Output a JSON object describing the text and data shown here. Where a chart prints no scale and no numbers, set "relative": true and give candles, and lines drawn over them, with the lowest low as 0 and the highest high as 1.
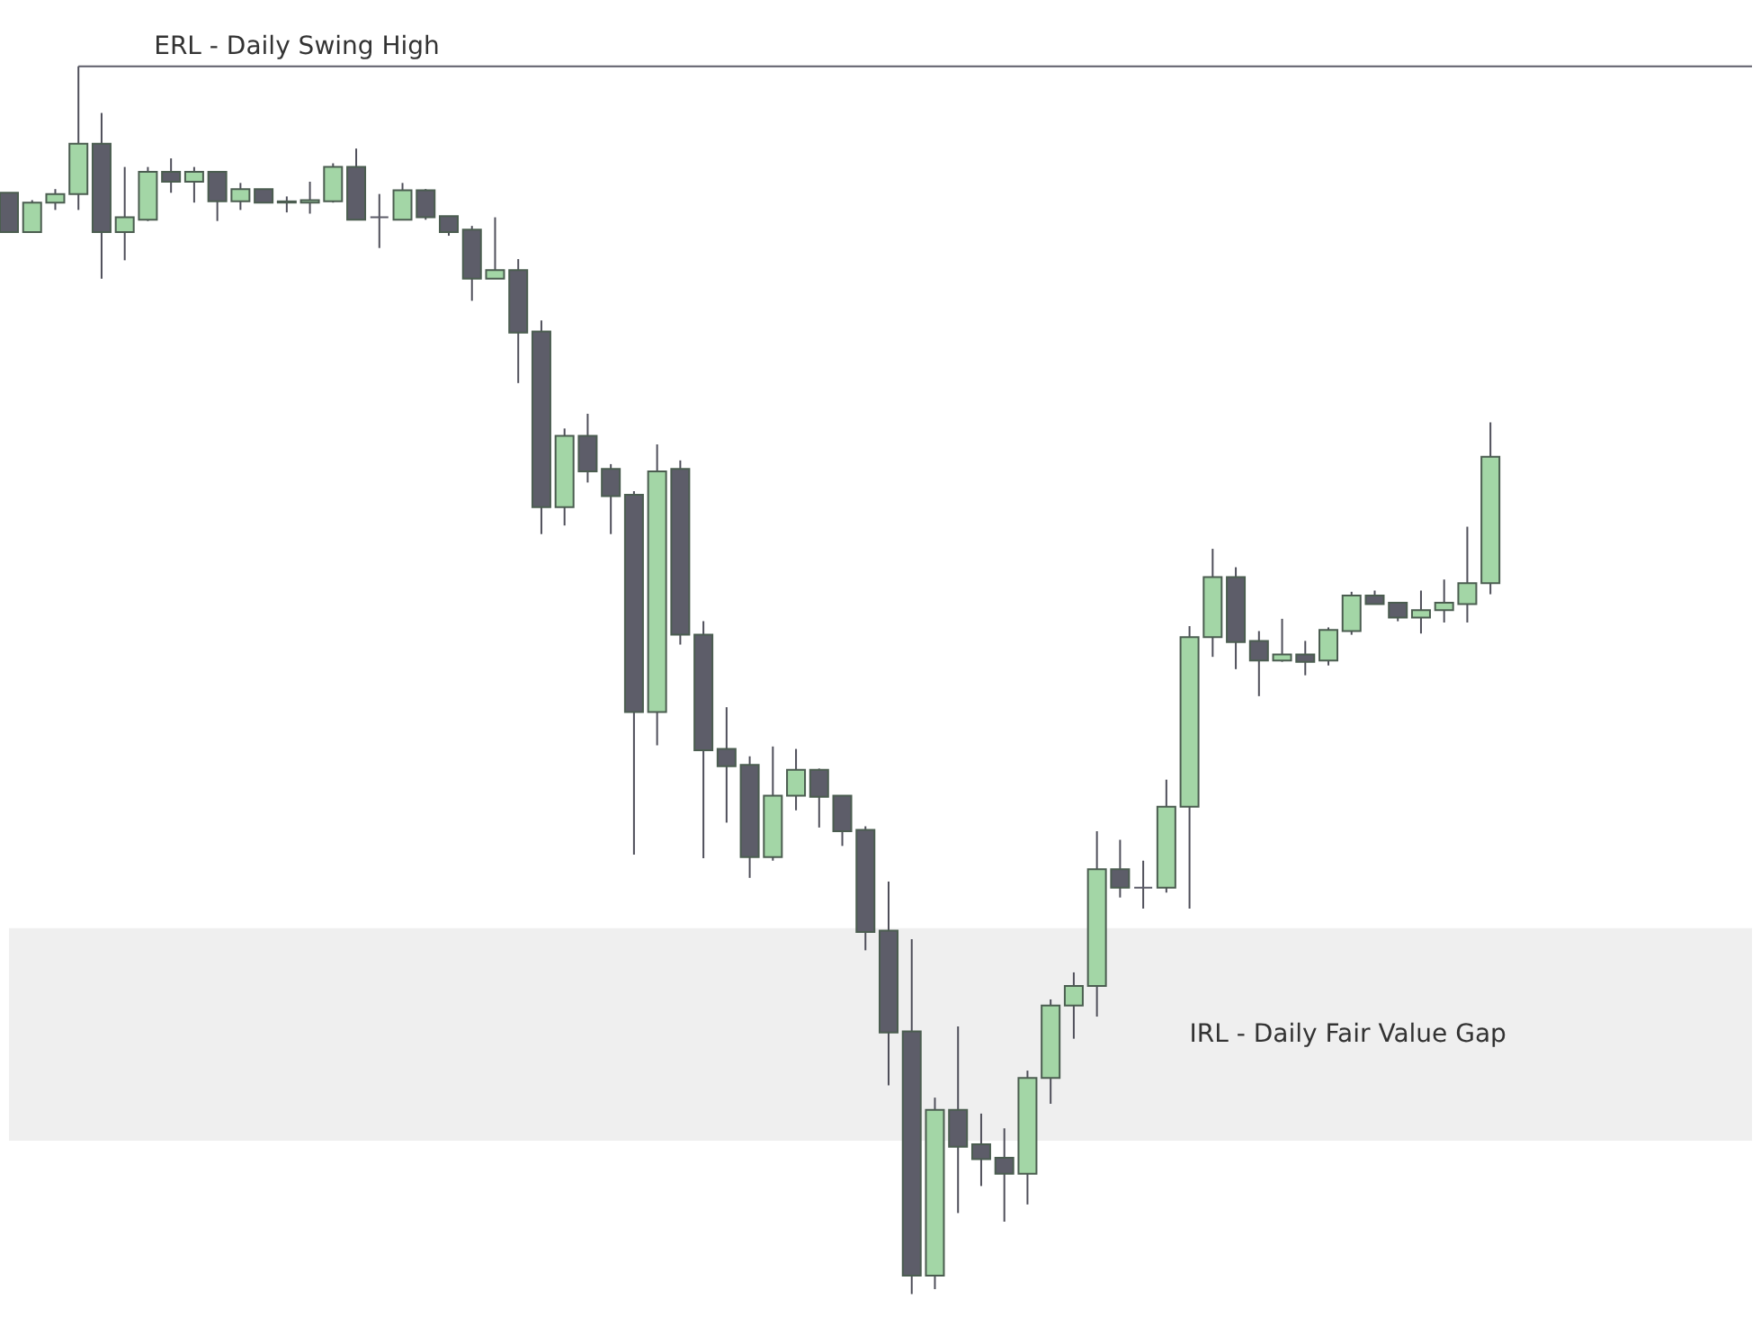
{
  "chart_data": {
    "type": "candlestick",
    "relative": true,
    "categories": [
      null,
      null,
      null,
      null,
      null,
      null,
      null,
      null,
      null,
      null,
      null,
      null,
      null,
      null,
      null,
      null,
      null,
      null,
      null,
      null,
      null,
      null,
      null,
      null,
      null,
      null,
      null,
      null,
      null,
      null,
      null,
      null,
      null,
      null,
      null,
      null,
      null,
      null,
      null,
      null,
      null,
      null,
      null,
      null,
      null,
      null,
      null,
      null,
      null,
      null,
      null,
      null,
      null,
      null,
      null,
      null,
      null,
      null,
      null,
      null,
      null,
      null,
      null,
      null,
      null
    ],
    "ohlc": [
      [
        0.897,
        0.897,
        0.865,
        0.865
      ],
      [
        0.865,
        0.891,
        0.865,
        0.889
      ],
      [
        0.889,
        0.9,
        0.883,
        0.896
      ],
      [
        0.896,
        1,
        0.883,
        0.937
      ],
      [
        0.937,
        0.962,
        0.827,
        0.865
      ],
      [
        0.865,
        0.918,
        0.842,
        0.877
      ],
      [
        0.875,
        0.918,
        0.874,
        0.914
      ],
      [
        0.914,
        0.925,
        0.897,
        0.906
      ],
      [
        0.906,
        0.918,
        0.889,
        0.914
      ],
      [
        0.914,
        0.914,
        0.874,
        0.89
      ],
      [
        0.89,
        0.905,
        0.883,
        0.9
      ],
      [
        0.9,
        0.9,
        0.889,
        0.889
      ],
      [
        0.89,
        0.894,
        0.881,
        0.889
      ],
      [
        0.889,
        0.906,
        0.88,
        0.891
      ],
      [
        0.89,
        0.921,
        0.889,
        0.918
      ],
      [
        0.918,
        0.933,
        0.875,
        0.875
      ],
      [
        0.877,
        0.896,
        0.852,
        0.877
      ],
      [
        0.875,
        0.905,
        0.875,
        0.899
      ],
      [
        0.899,
        0.9,
        0.875,
        0.877
      ],
      [
        0.878,
        0.878,
        0.862,
        0.865
      ],
      [
        0.867,
        0.87,
        0.809,
        0.827
      ],
      [
        0.827,
        0.877,
        0.827,
        0.834
      ],
      [
        0.834,
        0.843,
        0.742,
        0.783
      ],
      [
        0.784,
        0.793,
        0.619,
        0.641
      ],
      [
        0.641,
        0.705,
        0.626,
        0.699
      ],
      [
        0.699,
        0.717,
        0.661,
        0.67
      ],
      [
        0.672,
        0.676,
        0.619,
        0.65
      ],
      [
        0.651,
        0.654,
        0.358,
        0.474
      ],
      [
        0.474,
        0.692,
        0.447,
        0.67
      ],
      [
        0.672,
        0.679,
        0.529,
        0.537
      ],
      [
        0.537,
        0.548,
        0.355,
        0.443
      ],
      [
        0.444,
        0.478,
        0.384,
        0.43
      ],
      [
        0.431,
        0.438,
        0.339,
        0.356
      ],
      [
        0.356,
        0.446,
        0.353,
        0.406
      ],
      [
        0.406,
        0.444,
        0.394,
        0.427
      ],
      [
        0.427,
        0.428,
        0.38,
        0.405
      ],
      [
        0.406,
        0.406,
        0.365,
        0.377
      ],
      [
        0.378,
        0.381,
        0.28,
        0.295
      ],
      [
        0.296,
        0.336,
        0.17,
        0.213
      ],
      [
        0.214,
        0.289,
        0,
        0.015
      ],
      [
        0.015,
        0.16,
        0.004,
        0.15
      ],
      [
        0.15,
        0.218,
        0.066,
        0.12
      ],
      [
        0.122,
        0.147,
        0.088,
        0.11
      ],
      [
        0.111,
        0.135,
        0.059,
        0.098
      ],
      [
        0.098,
        0.182,
        0.073,
        0.176
      ],
      [
        0.176,
        0.24,
        0.155,
        0.235
      ],
      [
        0.235,
        0.262,
        0.208,
        0.251
      ],
      [
        0.251,
        0.377,
        0.226,
        0.346
      ],
      [
        0.346,
        0.37,
        0.323,
        0.331
      ],
      [
        0.331,
        0.353,
        0.314,
        0.331
      ],
      [
        0.331,
        0.419,
        0.327,
        0.397
      ],
      [
        0.397,
        0.544,
        0.314,
        0.535
      ],
      [
        0.535,
        0.607,
        0.519,
        0.584
      ],
      [
        0.584,
        0.592,
        0.509,
        0.531
      ],
      [
        0.532,
        0.54,
        0.487,
        0.516
      ],
      [
        0.516,
        0.55,
        0.515,
        0.521
      ],
      [
        0.521,
        0.532,
        0.504,
        0.515
      ],
      [
        0.516,
        0.543,
        0.512,
        0.541
      ],
      [
        0.54,
        0.572,
        0.537,
        0.569
      ],
      [
        0.569,
        0.573,
        0.562,
        0.562
      ],
      [
        0.563,
        0.563,
        0.548,
        0.551
      ],
      [
        0.551,
        0.573,
        0.538,
        0.557
      ],
      [
        0.557,
        0.582,
        0.547,
        0.563
      ],
      [
        0.562,
        0.625,
        0.547,
        0.579
      ],
      [
        0.579,
        0.71,
        0.57,
        0.682
      ]
    ],
    "colors": [
      "#5d5d69",
      "#a3d6a6",
      "#a3d6a6",
      "#a3d6a6",
      "#5d5d69",
      "#a3d6a6",
      "#a3d6a6",
      "#5d5d69",
      "#a3d6a6",
      "#5d5d69",
      "#a3d6a6",
      "#5d5d69",
      "#5d5d69",
      "#a3d6a6",
      "#a3d6a6",
      "#5d5d69",
      "#5d5d69",
      "#a3d6a6",
      "#5d5d69",
      "#5d5d69",
      "#5d5d69",
      "#a3d6a6",
      "#5d5d69",
      "#5d5d69",
      "#a3d6a6",
      "#5d5d69",
      "#5d5d69",
      "#5d5d69",
      "#a3d6a6",
      "#5d5d69",
      "#5d5d69",
      "#5d5d69",
      "#5d5d69",
      "#a3d6a6",
      "#a3d6a6",
      "#5d5d69",
      "#5d5d69",
      "#5d5d69",
      "#5d5d69",
      "#5d5d69",
      "#a3d6a6",
      "#5d5d69",
      "#5d5d69",
      "#5d5d69",
      "#a3d6a6",
      "#a3d6a6",
      "#a3d6a6",
      "#a3d6a6",
      "#5d5d69",
      "#5d5d69",
      "#a3d6a6",
      "#a3d6a6",
      "#a3d6a6",
      "#5d5d69",
      "#5d5d69",
      "#a3d6a6",
      "#5d5d69",
      "#a3d6a6",
      "#a3d6a6",
      "#5d5d69",
      "#5d5d69",
      "#a3d6a6",
      "#a3d6a6",
      "#a3d6a6",
      "#a3d6a6"
    ],
    "ref_lines": [
      {
        "axis": "y",
        "value": 1,
        "label": "ERL - Daily Swing High",
        "color": "#5d5d69"
      }
    ],
    "bands": [
      {
        "axis": "y",
        "from": 0.125,
        "to": 0.298,
        "label": "IRL - Daily Fair Value Gap",
        "color": "#efefef"
      }
    ]
  }
}
